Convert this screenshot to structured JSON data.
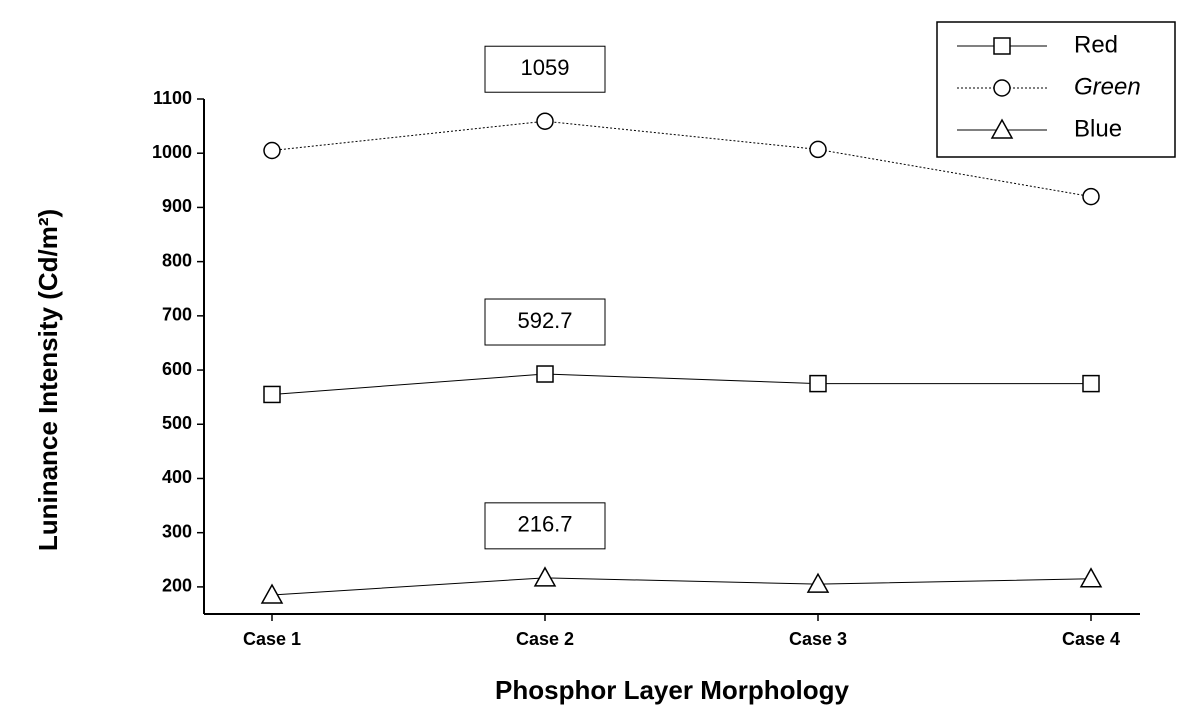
{
  "chart_data": {
    "type": "line",
    "x_label": "Phosphor Layer Morphology",
    "y_label": "Luninance Intensity (Cd/m²)",
    "categories": [
      "Case 1",
      "Case 2",
      "Case 3",
      "Case 4"
    ],
    "series": [
      {
        "name": "Red",
        "color": "#000000",
        "marker": "square",
        "values": [
          555,
          592.7,
          575,
          575
        ],
        "value_labels": [
          null,
          "592.7",
          null,
          null
        ]
      },
      {
        "name": "Green",
        "color": "#000000",
        "marker": "circle",
        "values": [
          1005,
          1059,
          1007,
          920
        ],
        "value_labels": [
          null,
          "1059",
          null,
          null
        ]
      },
      {
        "name": "Blue",
        "color": "#000000",
        "marker": "triangle",
        "values": [
          185,
          216.7,
          205,
          215
        ],
        "value_labels": [
          null,
          "216.7",
          null,
          null
        ]
      }
    ],
    "ylim": [
      150,
      1100
    ],
    "yticks": [
      200,
      300,
      400,
      500,
      600,
      700,
      800,
      900,
      1000,
      1100
    ],
    "legend": "top-right"
  }
}
